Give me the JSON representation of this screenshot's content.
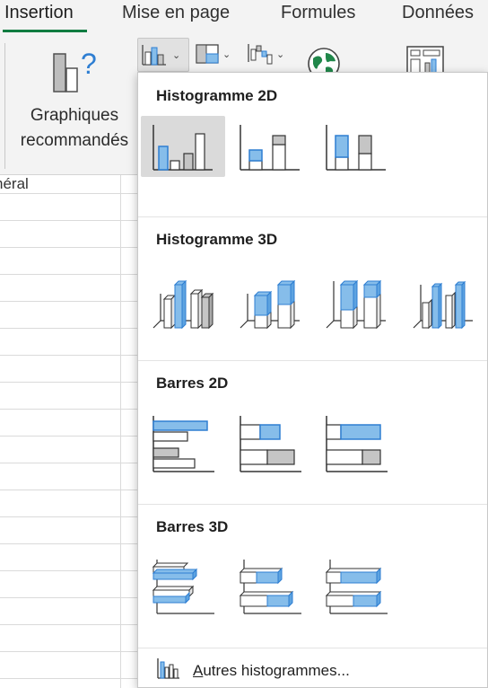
{
  "tabs": [
    "Insertion",
    "Mise en page",
    "Formules",
    "Données"
  ],
  "active_tab": "Insertion",
  "ribbon": {
    "recommended_line1": "Graphiques",
    "recommended_line2": "recommandés",
    "chart_buttons": [
      "column-chart-icon",
      "hierarchy-chart-icon",
      "waterfall-chart-icon"
    ],
    "map_icon": "map-chart-icon",
    "pivot_icon": "pivotchart-icon"
  },
  "sheet": {
    "column_header_fragment": "néral"
  },
  "menu": {
    "sections": [
      {
        "title": "Histogramme 2D",
        "options": [
          "clustered-column",
          "stacked-column",
          "100-stacked-column"
        ]
      },
      {
        "title": "Histogramme 3D",
        "options": [
          "3d-clustered-column",
          "3d-stacked-column",
          "3d-100-stacked-column",
          "3d-column"
        ]
      },
      {
        "title": "Barres 2D",
        "options": [
          "clustered-bar",
          "stacked-bar",
          "100-stacked-bar"
        ]
      },
      {
        "title": "Barres 3D",
        "options": [
          "3d-clustered-bar",
          "3d-stacked-bar",
          "3d-100-stacked-bar"
        ]
      }
    ],
    "selected_option": "clustered-column",
    "more_prefix": "A",
    "more_rest": "utres histogrammes..."
  },
  "colors": {
    "accent_green": "#107c41",
    "chart_blue": "#86bdea",
    "chart_blue_stroke": "#2e7ed2",
    "chart_gray": "#c5c5c5"
  }
}
